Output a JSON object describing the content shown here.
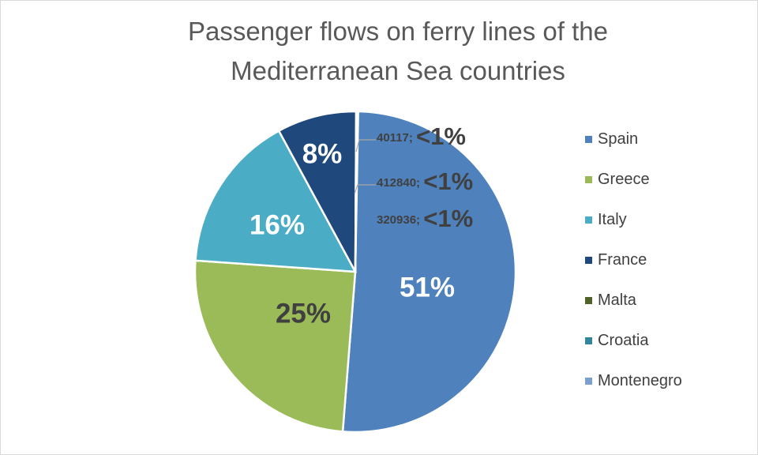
{
  "chart_data": {
    "type": "pie",
    "title_lines": [
      "Passenger flows on ferry lines of the",
      "Mediterranean Sea countries"
    ],
    "slices": [
      {
        "label": "Spain",
        "value": 51.0,
        "color": "#4f81bd",
        "data_label": "51%",
        "label_color": "#ffffff"
      },
      {
        "label": "Greece",
        "value": 25.0,
        "color": "#9bbb59",
        "data_label": "25%",
        "label_color": "#404040"
      },
      {
        "label": "Italy",
        "value": 16.0,
        "color": "#4bacc6",
        "data_label": "16%",
        "label_color": "#ffffff"
      },
      {
        "label": "France",
        "value": 8.0,
        "color": "#1f497d",
        "data_label": "8%",
        "label_color": "#ffffff"
      },
      {
        "label": "Malta",
        "value": 40117,
        "color": "#4f6228",
        "data_label_value": "40117;",
        "data_label": "<1%",
        "label_color": "#404040"
      },
      {
        "label": "Croatia",
        "value": 412840,
        "color": "#31859c",
        "data_label_value": "412840;",
        "data_label": "<1%",
        "label_color": "#404040"
      },
      {
        "label": "Montenegro",
        "value": 320936,
        "color": "#7ba0cd",
        "data_label_value": "320936;",
        "data_label": "<1%",
        "label_color": "#404040"
      }
    ],
    "legend_position": "right"
  }
}
